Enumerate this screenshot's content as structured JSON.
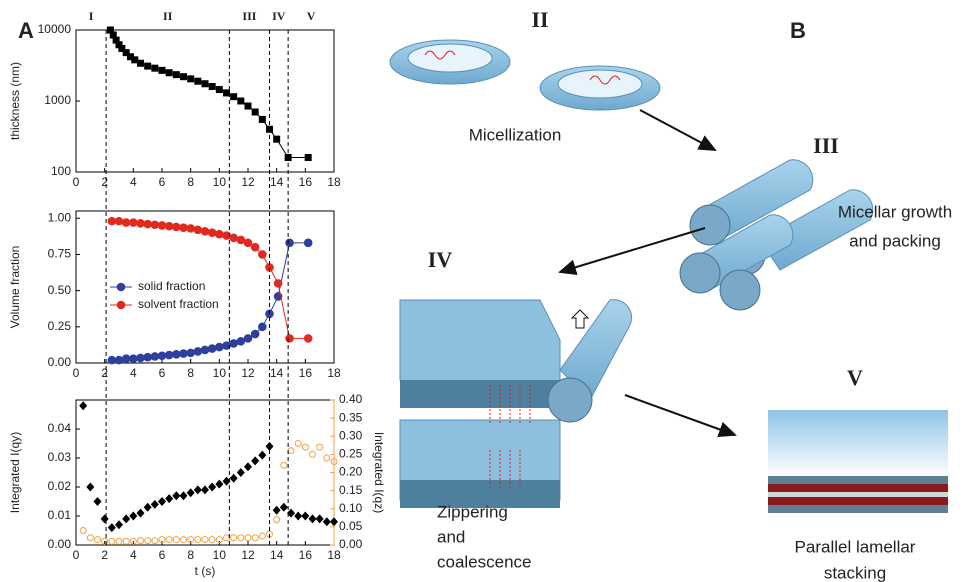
{
  "figure": {
    "panel_a": "A",
    "panel_b": "B",
    "regions": [
      "I",
      "II",
      "III",
      "IV",
      "V"
    ],
    "dividers": [
      2.1,
      10.7,
      13.5,
      14.8
    ]
  },
  "diagram": {
    "stage_2": "II",
    "stage_2_caption": "Micellization",
    "stage_3": "III",
    "stage_3_caption": [
      "Micellar growth",
      "and packing"
    ],
    "stage_4": "IV",
    "stage_4_caption": [
      "Zippering",
      "and",
      "coalescence"
    ],
    "stage_5": "V",
    "stage_5_caption": [
      "Parallel lamellar",
      "stacking"
    ]
  },
  "chart_data": [
    {
      "type": "line",
      "ylabel": "thickness (nm)",
      "log_y": true,
      "marker": "square",
      "color": "#000000",
      "x": [
        2.4,
        2.6,
        2.8,
        3.0,
        3.2,
        3.5,
        3.8,
        4.1,
        4.5,
        5,
        5.5,
        6,
        6.5,
        7,
        7.5,
        8,
        8.5,
        9,
        9.5,
        10,
        10.5,
        11,
        11.5,
        12,
        12.5,
        13,
        13.5,
        14,
        14.8,
        16.2
      ],
      "values": [
        10000,
        8500,
        7200,
        6200,
        5500,
        4800,
        4200,
        3800,
        3400,
        3100,
        2900,
        2700,
        2500,
        2350,
        2200,
        2050,
        1900,
        1750,
        1600,
        1450,
        1300,
        1150,
        1000,
        850,
        700,
        550,
        400,
        290,
        160,
        160
      ],
      "xlim": [
        0,
        18
      ],
      "xticks": [
        0,
        2,
        4,
        6,
        8,
        10,
        12,
        14,
        16,
        18
      ],
      "ylim": [
        100,
        10000
      ],
      "yticks": [
        100,
        1000,
        10000
      ]
    },
    {
      "type": "line",
      "ylabel": "Volume fraction",
      "marker": "circle",
      "legend": "left",
      "x": [
        2.5,
        3,
        3.5,
        4,
        4.5,
        5,
        5.5,
        6,
        6.5,
        7,
        7.5,
        8,
        8.5,
        9,
        9.5,
        10,
        10.5,
        11,
        11.5,
        12,
        12.5,
        13,
        13.5,
        14.1,
        14.9,
        16.2
      ],
      "series": [
        {
          "name": "solid fraction",
          "color": "#2e3f9e",
          "values": [
            0.02,
            0.02,
            0.03,
            0.03,
            0.035,
            0.04,
            0.045,
            0.05,
            0.055,
            0.06,
            0.065,
            0.07,
            0.08,
            0.09,
            0.1,
            0.11,
            0.12,
            0.135,
            0.15,
            0.17,
            0.2,
            0.25,
            0.34,
            0.46,
            0.83,
            0.83
          ]
        },
        {
          "name": "solvent fraction",
          "color": "#e02a20",
          "values": [
            0.98,
            0.98,
            0.97,
            0.97,
            0.965,
            0.96,
            0.955,
            0.95,
            0.945,
            0.94,
            0.935,
            0.93,
            0.92,
            0.91,
            0.9,
            0.89,
            0.88,
            0.865,
            0.85,
            0.83,
            0.8,
            0.75,
            0.66,
            0.55,
            0.17,
            0.17
          ]
        }
      ],
      "xlim": [
        0,
        18
      ],
      "xticks": [
        0,
        2,
        4,
        6,
        8,
        10,
        12,
        14,
        16,
        18
      ],
      "ylim": [
        0,
        1.05
      ],
      "yticks": [
        {
          "value": 0,
          "label": "0.00"
        },
        {
          "value": 0.25,
          "label": "0.25"
        },
        {
          "value": 0.5,
          "label": "0.50"
        },
        {
          "value": 0.75,
          "label": "0.75"
        },
        {
          "value": 1,
          "label": "1.00"
        }
      ]
    },
    {
      "type": "scatter",
      "xlabel": "t (s)",
      "ylabel": "Integrated I(qy)",
      "y2label": "Integrated I(qz)",
      "x": [
        0.5,
        1,
        1.5,
        2,
        2.5,
        3,
        3.5,
        4,
        4.5,
        5,
        5.5,
        6,
        6.5,
        7,
        7.5,
        8,
        8.5,
        9,
        9.5,
        10,
        10.5,
        11,
        11.5,
        12,
        12.5,
        13,
        13.5,
        14,
        14.5,
        15,
        15.5,
        16,
        16.5,
        17,
        17.5,
        18
      ],
      "series": [
        {
          "color": "#000000",
          "marker": "diamond",
          "values": [
            0.048,
            0.02,
            0.015,
            0.009,
            0.006,
            0.007,
            0.009,
            0.01,
            0.011,
            0.013,
            0.014,
            0.015,
            0.016,
            0.017,
            0.017,
            0.018,
            0.019,
            0.019,
            0.02,
            0.021,
            0.022,
            0.023,
            0.025,
            0.027,
            0.029,
            0.031,
            0.034,
            0.012,
            0.013,
            0.011,
            0.01,
            0.01,
            0.009,
            0.009,
            0.008,
            0.008
          ]
        },
        {
          "color": "#f0a04a",
          "marker": "circle",
          "axis": "y2",
          "values": [
            0.04,
            0.02,
            0.015,
            0.01,
            0.01,
            0.01,
            0.01,
            0.01,
            0.012,
            0.012,
            0.012,
            0.015,
            0.015,
            0.015,
            0.015,
            0.015,
            0.015,
            0.015,
            0.015,
            0.015,
            0.02,
            0.02,
            0.02,
            0.02,
            0.02,
            0.025,
            0.03,
            0.07,
            0.22,
            0.26,
            0.28,
            0.27,
            0.25,
            0.27,
            0.24,
            0.23
          ]
        }
      ],
      "xlim": [
        0,
        18
      ],
      "xticks": [
        0,
        2,
        4,
        6,
        8,
        10,
        12,
        14,
        16,
        18
      ],
      "ylim": [
        0,
        0.05
      ],
      "yticks": [
        {
          "value": 0,
          "label": "0.00"
        },
        0.01,
        0.02,
        0.03,
        0.04
      ],
      "y2lim": [
        0,
        0.4
      ],
      "y2ticks": [
        {
          "value": 0,
          "label": "0.00"
        },
        0.05,
        {
          "value": 0.1,
          "label": "0.10"
        },
        0.15,
        {
          "value": 0.2,
          "label": "0.20"
        },
        0.25,
        {
          "value": 0.3,
          "label": "0.30"
        },
        0.35,
        {
          "value": 0.4,
          "label": "0.40"
        }
      ]
    }
  ]
}
